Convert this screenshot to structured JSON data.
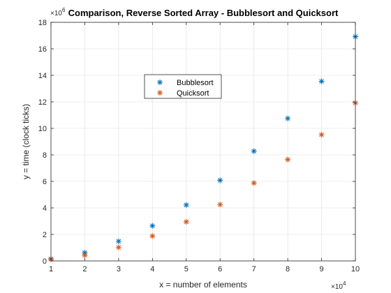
{
  "chart_data": {
    "type": "scatter",
    "title": "Comparison, Reverse Sorted Array - Bubblesort and Quicksort",
    "xlabel": "x = number of elements",
    "ylabel": "y = time (clock ticks)",
    "x_exponent_label": "×10",
    "x_exponent_power": "4",
    "y_exponent_label": "×10",
    "y_exponent_power": "6",
    "xlim": [
      1,
      10
    ],
    "ylim": [
      0,
      18
    ],
    "xticks": [
      "1",
      "2",
      "3",
      "4",
      "5",
      "6",
      "7",
      "8",
      "9",
      "10"
    ],
    "yticks": [
      "0",
      "2",
      "4",
      "6",
      "8",
      "10",
      "12",
      "14",
      "16",
      "18"
    ],
    "grid": true,
    "legend_position": "inside-upper-center",
    "marker": "*",
    "series": [
      {
        "name": "Bubblesort",
        "color": "#0072BD",
        "x": [
          1,
          2,
          3,
          4,
          5,
          6,
          7,
          8,
          9,
          10
        ],
        "y": [
          0.15,
          0.62,
          1.48,
          2.65,
          4.22,
          6.08,
          8.28,
          10.75,
          13.55,
          16.92
        ]
      },
      {
        "name": "Quicksort",
        "color": "#D95319",
        "x": [
          1,
          2,
          3,
          4,
          5,
          6,
          7,
          8,
          9,
          10
        ],
        "y": [
          0.12,
          0.42,
          1.02,
          1.88,
          2.95,
          4.25,
          5.88,
          7.65,
          9.52,
          11.92
        ]
      }
    ]
  }
}
